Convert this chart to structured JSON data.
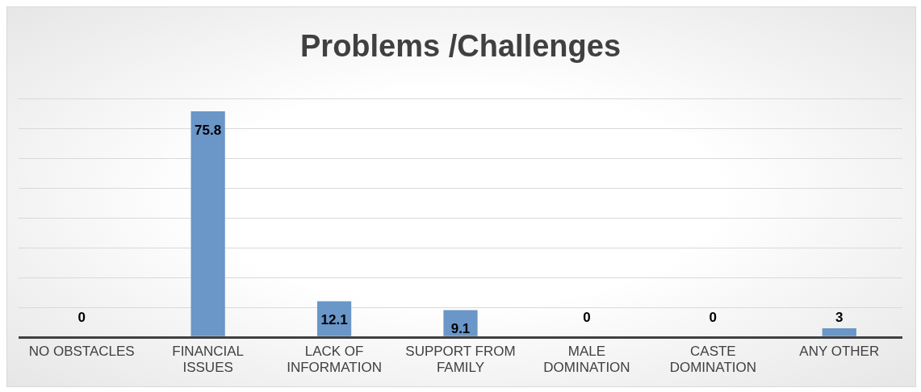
{
  "chart_data": {
    "type": "bar",
    "title": "Problems /Challenges",
    "categories": [
      "NO OBSTACLES",
      "FINANCIAL ISSUES",
      "LACK OF INFORMATION",
      "SUPPORT FROM FAMILY",
      "MALE DOMINATION",
      "CASTE DOMINATION",
      "ANY OTHER"
    ],
    "values": [
      0,
      75.8,
      12.1,
      9.1,
      0,
      0,
      3
    ],
    "color": "#6a96c8",
    "grid": "y",
    "tick_labels": "x",
    "data_labels": true
  }
}
